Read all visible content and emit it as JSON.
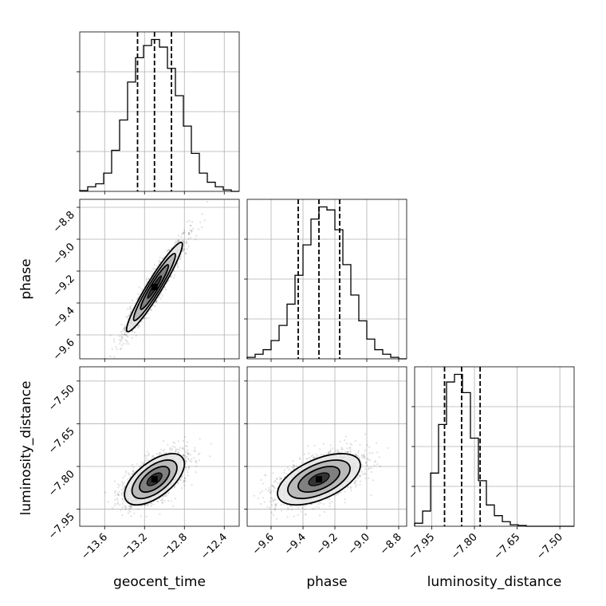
{
  "chart_data": {
    "type": "corner",
    "parameters": [
      "geocent_time",
      "phase",
      "luminosity_distance"
    ],
    "axis_labels": {
      "geocent_time": "geocent_time",
      "phase": "phase",
      "luminosity_distance": "luminosity_distance"
    },
    "ranges": {
      "geocent_time": [
        -13.85,
        -12.25
      ],
      "phase": [
        -9.75,
        -8.75
      ],
      "luminosity_distance": [
        -8.01,
        -7.45
      ]
    },
    "ticks": {
      "geocent_time": {
        "values": [
          -13.6,
          -13.2,
          -12.8,
          -12.4
        ],
        "labels": [
          "−13.6",
          "−13.2",
          "−12.8",
          "−12.4"
        ]
      },
      "phase": {
        "values": [
          -9.6,
          -9.4,
          -9.2,
          -9.0,
          -8.8
        ],
        "labels": [
          "−9.6",
          "−9.4",
          "−9.2",
          "−9.0",
          "−8.8"
        ]
      },
      "luminosity_distance": {
        "values": [
          -7.95,
          -7.8,
          -7.65,
          -7.5
        ],
        "labels": [
          "−7.95",
          "−7.80",
          "−7.65",
          "−7.50"
        ]
      }
    },
    "quantiles": {
      "geocent_time": [
        -13.27,
        -13.1,
        -12.93
      ],
      "phase": [
        -9.43,
        -9.3,
        -9.17
      ],
      "luminosity_distance": [
        -7.905,
        -7.845,
        -7.78
      ]
    },
    "histograms": {
      "geocent_time": {
        "bin_edges": [
          -13.85,
          -13.77,
          -13.69,
          -13.61,
          -13.53,
          -13.45,
          -13.37,
          -13.29,
          -13.21,
          -13.13,
          -13.05,
          -12.97,
          -12.89,
          -12.81,
          -12.73,
          -12.65,
          -12.57,
          -12.49,
          -12.41,
          -12.33,
          -12.25
        ],
        "counts": [
          0.005,
          0.03,
          0.05,
          0.12,
          0.27,
          0.47,
          0.72,
          0.88,
          0.96,
          1.0,
          0.95,
          0.81,
          0.63,
          0.43,
          0.25,
          0.12,
          0.06,
          0.03,
          0.01,
          0.0
        ]
      },
      "phase": {
        "bin_edges": [
          -9.75,
          -9.7,
          -9.65,
          -9.6,
          -9.55,
          -9.5,
          -9.45,
          -9.4,
          -9.35,
          -9.3,
          -9.25,
          -9.2,
          -9.15,
          -9.1,
          -9.05,
          -9.0,
          -8.95,
          -8.9,
          -8.85,
          -8.8,
          -8.75
        ],
        "counts": [
          0.01,
          0.03,
          0.06,
          0.12,
          0.22,
          0.36,
          0.55,
          0.75,
          0.92,
          1.0,
          0.98,
          0.85,
          0.62,
          0.42,
          0.25,
          0.13,
          0.06,
          0.03,
          0.01,
          0.0
        ]
      },
      "luminosity_distance": {
        "bin_edges": [
          -8.01,
          -7.982,
          -7.954,
          -7.926,
          -7.898,
          -7.87,
          -7.842,
          -7.814,
          -7.786,
          -7.758,
          -7.73,
          -7.702,
          -7.674,
          -7.646,
          -7.618,
          -7.59,
          -7.562,
          -7.534,
          -7.506,
          -7.478,
          -7.45
        ],
        "counts": [
          0.02,
          0.1,
          0.35,
          0.67,
          0.95,
          1.0,
          0.88,
          0.58,
          0.3,
          0.14,
          0.07,
          0.03,
          0.01,
          0.005,
          0.0,
          0.0,
          0.0,
          0.0,
          0.0,
          0.0
        ]
      }
    },
    "pairs": [
      {
        "x": "geocent_time",
        "y": "phase",
        "mean": [
          -13.1,
          -9.3
        ],
        "sd": [
          0.14,
          0.14
        ],
        "corr": 0.95
      },
      {
        "x": "geocent_time",
        "y": "luminosity_distance",
        "mean": [
          -13.1,
          -7.845
        ],
        "sd": [
          0.15,
          0.045
        ],
        "corr": 0.6
      },
      {
        "x": "phase",
        "y": "luminosity_distance",
        "mean": [
          -9.3,
          -7.845
        ],
        "sd": [
          0.13,
          0.045
        ],
        "corr": 0.55
      }
    ],
    "contour_levels_sigma": [
      0.5,
      1.0,
      1.5,
      2.0
    ],
    "grid": true
  }
}
